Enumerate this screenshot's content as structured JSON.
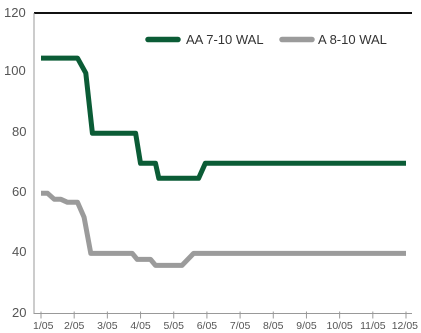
{
  "chart_data": {
    "type": "line",
    "title": "",
    "xlabel": "",
    "ylabel": "",
    "ylim": [
      20,
      120
    ],
    "y_ticks": [
      20,
      40,
      60,
      80,
      100,
      120
    ],
    "x_ticks": [
      "1/05",
      "2/05",
      "3/05",
      "4/05",
      "5/05",
      "6/05",
      "7/05",
      "8/05",
      "9/05",
      "10/05",
      "11/05",
      "12/05"
    ],
    "grid": false,
    "legend_position": "top-right",
    "series": [
      {
        "name": "AA 7-10 WAL",
        "color": "#0b5c36",
        "points": [
          [
            0.0,
            105
          ],
          [
            1.1,
            105
          ],
          [
            1.35,
            100
          ],
          [
            1.55,
            80
          ],
          [
            2.0,
            80
          ],
          [
            2.5,
            80
          ],
          [
            2.85,
            80
          ],
          [
            3.0,
            70
          ],
          [
            3.3,
            70
          ],
          [
            3.45,
            70
          ],
          [
            3.55,
            65
          ],
          [
            4.0,
            65
          ],
          [
            4.5,
            65
          ],
          [
            4.75,
            65
          ],
          [
            4.95,
            70
          ],
          [
            5.5,
            70
          ],
          [
            6.0,
            70
          ],
          [
            7.0,
            70
          ],
          [
            8.0,
            70
          ],
          [
            9.0,
            70
          ],
          [
            10.0,
            70
          ],
          [
            11.0,
            70
          ]
        ]
      },
      {
        "name": "A 8-10 WAL",
        "color": "#9b9b9b",
        "points": [
          [
            0.0,
            60
          ],
          [
            0.2,
            60
          ],
          [
            0.4,
            58
          ],
          [
            0.6,
            58
          ],
          [
            0.8,
            57
          ],
          [
            1.1,
            57
          ],
          [
            1.3,
            52
          ],
          [
            1.5,
            40
          ],
          [
            2.0,
            40
          ],
          [
            2.5,
            40
          ],
          [
            2.75,
            40
          ],
          [
            2.9,
            38
          ],
          [
            3.3,
            38
          ],
          [
            3.45,
            36
          ],
          [
            4.0,
            36
          ],
          [
            4.25,
            36
          ],
          [
            4.6,
            40
          ],
          [
            5.0,
            40
          ],
          [
            6.0,
            40
          ],
          [
            7.0,
            40
          ],
          [
            8.0,
            40
          ],
          [
            9.0,
            40
          ],
          [
            10.0,
            40
          ],
          [
            11.0,
            40
          ]
        ]
      }
    ]
  }
}
